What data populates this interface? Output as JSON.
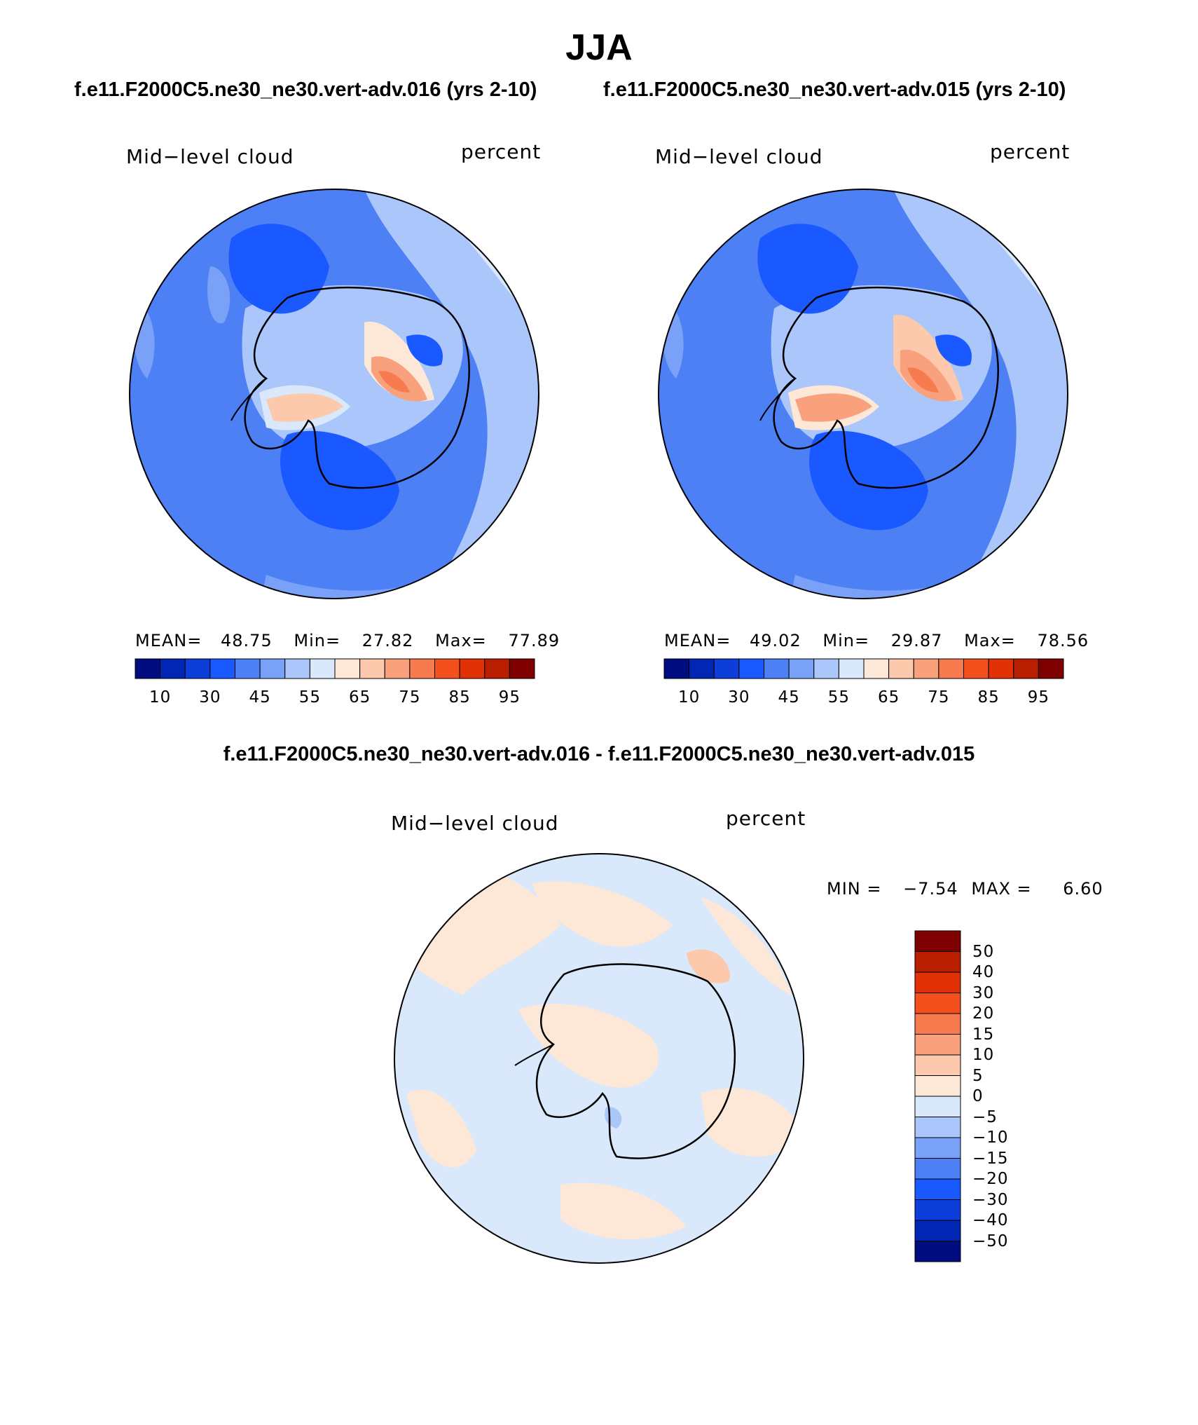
{
  "figure": {
    "season": "JJA",
    "case1_title": "f.e11.F2000C5.ne30_ne30.vert-adv.016 (yrs 2-10)",
    "case2_title": "f.e11.F2000C5.ne30_ne30.vert-adv.015 (yrs 2-10)",
    "diff_title": "f.e11.F2000C5.ne30_ne30.vert-adv.016 - f.e11.F2000C5.ne30_ne30.vert-adv.015"
  },
  "panels": [
    {
      "variable": "Mid−level cloud",
      "units": "percent",
      "mean_label": "MEAN=",
      "mean": "48.75",
      "min_label": "Min=",
      "min": "27.82",
      "max_label": "Max=",
      "max": "77.89"
    },
    {
      "variable": "Mid−level cloud",
      "units": "percent",
      "mean_label": "MEAN=",
      "mean": "49.02",
      "min_label": "Min=",
      "min": "29.87",
      "max_label": "Max=",
      "max": "78.56"
    }
  ],
  "diff_panel": {
    "variable": "Mid−level cloud",
    "units": "percent",
    "min_label": "MIN =",
    "min": "−7.54",
    "max_label": "MAX =",
    "max": "6.60"
  },
  "colorbar_main": {
    "colors": [
      "#000d80",
      "#0026b3",
      "#0d3ed9",
      "#1a59ff",
      "#4d7ff5",
      "#7aa1f8",
      "#abc6fa",
      "#d9e8fa",
      "#fde8d8",
      "#fcc9ad",
      "#f9a07d",
      "#f77b4f",
      "#f3501e",
      "#e23106",
      "#b81e00",
      "#7e0000"
    ],
    "labels": [
      "10",
      "30",
      "45",
      "55",
      "65",
      "75",
      "85",
      "95"
    ]
  },
  "colorbar_diff": {
    "colors": [
      "#7e0000",
      "#b81e00",
      "#e23106",
      "#f3501e",
      "#f77b4f",
      "#f9a07d",
      "#fcc9ad",
      "#fde8d8",
      "#d9e8fa",
      "#abc6fa",
      "#7aa1f8",
      "#4d7ff5",
      "#1a59ff",
      "#0d3ed9",
      "#0026b3",
      "#000d80"
    ],
    "labels": [
      "50",
      "40",
      "30",
      "20",
      "15",
      "10",
      "5",
      "0",
      "−5",
      "−10",
      "−15",
      "−20",
      "−30",
      "−40",
      "−50"
    ]
  }
}
